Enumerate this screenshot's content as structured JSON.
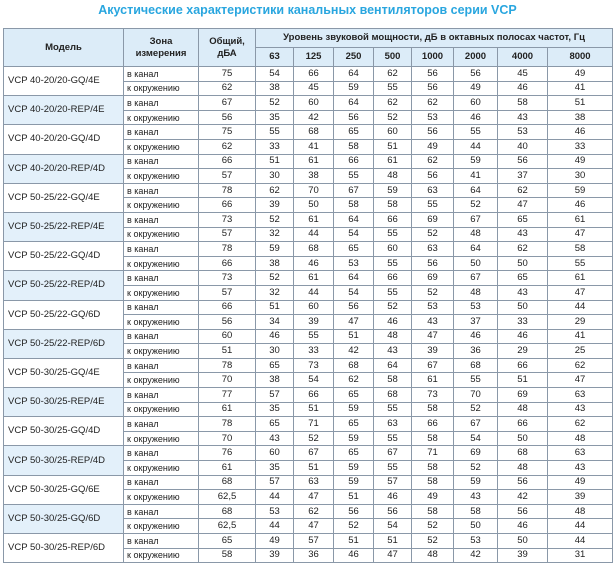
{
  "title": "Акустические характеристики канальных вентиляторов  серии VCP",
  "header": {
    "model": "Модель",
    "zone": "Зона измерения",
    "total": "Общий, дБА",
    "bands": "Уровень звуковой мощности, дБ в октавных полосах частот, Гц",
    "frequencies": [
      63,
      125,
      250,
      500,
      1000,
      2000,
      4000,
      8000
    ]
  },
  "models": [
    {
      "name": "VCP 40-20/20-GQ/4E",
      "rows": [
        {
          "zone": "в канал",
          "values": [
            75,
            54,
            66,
            64,
            62,
            56,
            56,
            45,
            49
          ]
        },
        {
          "zone": "к окружению",
          "values": [
            62,
            38,
            45,
            59,
            55,
            56,
            49,
            46,
            41
          ]
        }
      ]
    },
    {
      "name": "VCP 40-20/20-REP/4E",
      "rows": [
        {
          "zone": "в канал",
          "values": [
            67,
            52,
            60,
            64,
            62,
            62,
            60,
            58,
            51
          ]
        },
        {
          "zone": "к окружению",
          "values": [
            56,
            35,
            42,
            56,
            52,
            53,
            46,
            43,
            38
          ]
        }
      ]
    },
    {
      "name": "VCP 40-20/20-GQ/4D",
      "rows": [
        {
          "zone": "в канал",
          "values": [
            75,
            55,
            68,
            65,
            60,
            56,
            55,
            53,
            46
          ]
        },
        {
          "zone": "к окружению",
          "values": [
            62,
            33,
            41,
            58,
            51,
            49,
            44,
            40,
            33
          ]
        }
      ]
    },
    {
      "name": "VCP 40-20/20-REP/4D",
      "rows": [
        {
          "zone": "в канал",
          "values": [
            66,
            51,
            61,
            66,
            61,
            62,
            59,
            56,
            49
          ]
        },
        {
          "zone": "к окружению",
          "values": [
            57,
            30,
            38,
            55,
            48,
            56,
            41,
            37,
            30
          ]
        }
      ]
    },
    {
      "name": "VCP 50-25/22-GQ/4E",
      "rows": [
        {
          "zone": "в канал",
          "values": [
            78,
            62,
            70,
            67,
            59,
            63,
            64,
            62,
            59
          ]
        },
        {
          "zone": "к окружению",
          "values": [
            66,
            39,
            50,
            58,
            58,
            55,
            52,
            47,
            46
          ]
        }
      ]
    },
    {
      "name": "VCP 50-25/22-REP/4E",
      "rows": [
        {
          "zone": "в канал",
          "values": [
            73,
            52,
            61,
            64,
            66,
            69,
            67,
            65,
            61
          ]
        },
        {
          "zone": "к окружению",
          "values": [
            57,
            32,
            44,
            54,
            55,
            52,
            48,
            43,
            47
          ]
        }
      ]
    },
    {
      "name": "VCP 50-25/22-GQ/4D",
      "rows": [
        {
          "zone": "в канал",
          "values": [
            78,
            59,
            68,
            65,
            60,
            63,
            64,
            62,
            58
          ]
        },
        {
          "zone": "к окружению",
          "values": [
            66,
            38,
            46,
            53,
            55,
            56,
            50,
            50,
            55
          ]
        }
      ]
    },
    {
      "name": "VCP 50-25/22-REP/4D",
      "rows": [
        {
          "zone": "в канал",
          "values": [
            73,
            52,
            61,
            64,
            66,
            69,
            67,
            65,
            61
          ]
        },
        {
          "zone": "к окружению",
          "values": [
            57,
            32,
            44,
            54,
            55,
            52,
            48,
            43,
            47
          ]
        }
      ]
    },
    {
      "name": "VCP 50-25/22-GQ/6D",
      "rows": [
        {
          "zone": "в канал",
          "values": [
            66,
            51,
            60,
            56,
            52,
            53,
            53,
            50,
            44
          ]
        },
        {
          "zone": "к окружению",
          "values": [
            56,
            34,
            39,
            47,
            46,
            43,
            37,
            33,
            29
          ]
        }
      ]
    },
    {
      "name": "VCP 50-25/22-REP/6D",
      "rows": [
        {
          "zone": "в канал",
          "values": [
            60,
            46,
            55,
            51,
            48,
            47,
            46,
            46,
            41
          ]
        },
        {
          "zone": "к окружению",
          "values": [
            51,
            30,
            33,
            42,
            43,
            39,
            36,
            29,
            25
          ]
        }
      ]
    },
    {
      "name": "VCP 50-30/25-GQ/4E",
      "rows": [
        {
          "zone": "в канал",
          "values": [
            78,
            65,
            73,
            68,
            64,
            67,
            68,
            66,
            62
          ]
        },
        {
          "zone": "к окружению",
          "values": [
            70,
            38,
            54,
            62,
            58,
            61,
            55,
            51,
            47
          ]
        }
      ]
    },
    {
      "name": "VCP 50-30/25-REP/4E",
      "rows": [
        {
          "zone": "в канал",
          "values": [
            77,
            57,
            66,
            65,
            68,
            73,
            70,
            69,
            63
          ]
        },
        {
          "zone": "к окружению",
          "values": [
            61,
            35,
            51,
            59,
            55,
            58,
            52,
            48,
            43
          ]
        }
      ]
    },
    {
      "name": "VCP 50-30/25-GQ/4D",
      "rows": [
        {
          "zone": "в канал",
          "values": [
            78,
            65,
            71,
            65,
            63,
            66,
            67,
            66,
            62
          ]
        },
        {
          "zone": "к окружению",
          "values": [
            70,
            43,
            52,
            59,
            55,
            58,
            54,
            50,
            48
          ]
        }
      ]
    },
    {
      "name": "VCP 50-30/25-REP/4D",
      "rows": [
        {
          "zone": "в канал",
          "values": [
            76,
            60,
            67,
            65,
            67,
            71,
            69,
            68,
            63
          ]
        },
        {
          "zone": "к окружению",
          "values": [
            61,
            35,
            51,
            59,
            55,
            58,
            52,
            48,
            43
          ]
        }
      ]
    },
    {
      "name": "VCP 50-30/25-GQ/6E",
      "rows": [
        {
          "zone": "в канал",
          "values": [
            68,
            57,
            63,
            59,
            57,
            58,
            59,
            56,
            49
          ]
        },
        {
          "zone": "к окружению",
          "values": [
            "62,5",
            44,
            47,
            51,
            46,
            49,
            43,
            42,
            39
          ]
        }
      ]
    },
    {
      "name": "VCP 50-30/25-GQ/6D",
      "rows": [
        {
          "zone": "в канал",
          "values": [
            68,
            53,
            62,
            56,
            56,
            58,
            58,
            56,
            48
          ]
        },
        {
          "zone": "к окружению",
          "values": [
            "62,5",
            44,
            47,
            52,
            54,
            52,
            50,
            46,
            44
          ]
        }
      ]
    },
    {
      "name": "VCP 50-30/25-REP/6D",
      "rows": [
        {
          "zone": "в канал",
          "values": [
            65,
            49,
            57,
            51,
            51,
            52,
            53,
            50,
            44
          ]
        },
        {
          "zone": "к окружению",
          "values": [
            58,
            39,
            36,
            46,
            47,
            48,
            42,
            39,
            31
          ]
        }
      ]
    }
  ]
}
